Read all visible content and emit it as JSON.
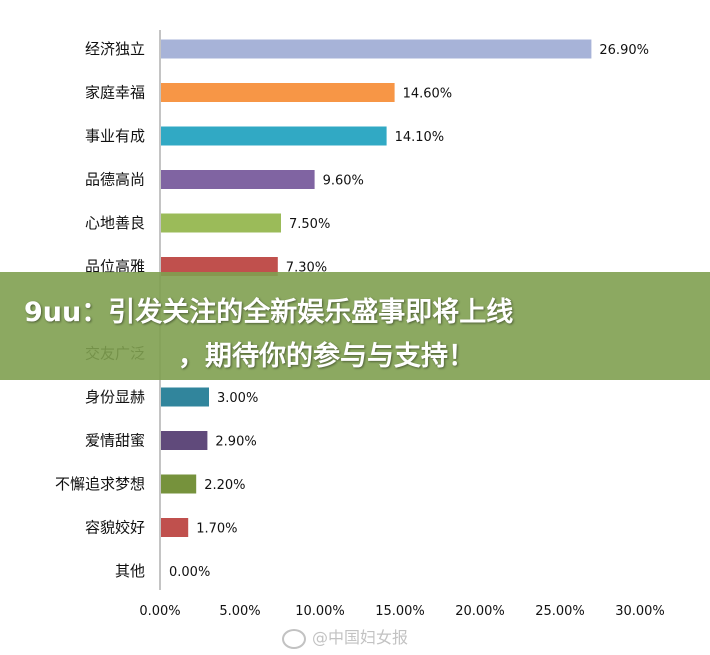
{
  "chart_data": {
    "type": "bar",
    "orientation": "horizontal",
    "categories": [
      "经济独立",
      "家庭幸福",
      "事业有成",
      "品德高尚",
      "心地善良",
      "品位高雅",
      "",
      "交友广泛",
      "身份显赫",
      "爱情甜蜜",
      "不懈追求梦想",
      "容貌姣好",
      "其他"
    ],
    "values": [
      26.9,
      14.6,
      14.1,
      9.6,
      7.5,
      7.3,
      null,
      null,
      3.0,
      2.9,
      2.2,
      1.7,
      0.0
    ],
    "value_labels": [
      "26.90%",
      "14.60%",
      "14.10%",
      "9.60%",
      "7.50%",
      "7.30%",
      "",
      "",
      "3.00%",
      "2.90%",
      "2.20%",
      "1.70%",
      "0.00%"
    ],
    "colors": [
      "#a7b3d8",
      "#f79646",
      "#31a9c4",
      "#8064a2",
      "#9bbb59",
      "#c0504d",
      "#4f81bd",
      "#7f6000",
      "#31859c",
      "#604a7b",
      "#76923c",
      "#c0504d",
      "#4f81bd"
    ],
    "xlim": [
      0,
      30
    ],
    "x_ticks": [
      "0.00%",
      "5.00%",
      "10.00%",
      "15.00%",
      "20.00%",
      "25.00%",
      "30.00%"
    ],
    "title": "",
    "xlabel": "",
    "ylabel": "",
    "grid": false,
    "legend": "none"
  },
  "banner": {
    "line1": "9uu：引发关注的全新娱乐盛事即将上线",
    "line2": "，期待你的参与与支持！"
  },
  "watermark": {
    "text": "@中国妇女报"
  }
}
